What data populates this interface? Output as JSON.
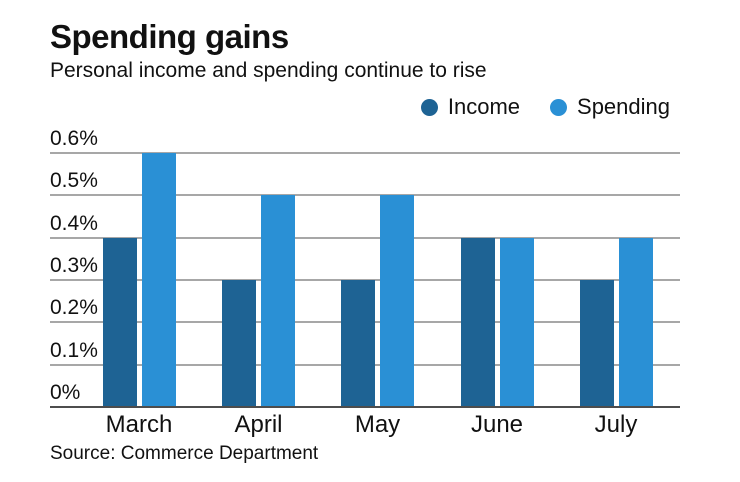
{
  "header": {
    "title": "Spending gains",
    "subtitle": "Personal income and spending continue to rise"
  },
  "legend": {
    "items": [
      {
        "label": "Income",
        "color": "#1e6394"
      },
      {
        "label": "Spending",
        "color": "#2a90d5"
      }
    ]
  },
  "source": {
    "text": "Source: Commerce Department"
  },
  "colors": {
    "income": "#1e6394",
    "spending": "#2a90d5",
    "gridline": "#a7a7a7",
    "baseline": "#4d4d4d",
    "text": "#111111"
  },
  "chart_data": {
    "type": "bar",
    "title": "Spending gains",
    "subtitle": "Personal income and spending continue to rise",
    "categories": [
      "March",
      "April",
      "May",
      "June",
      "July"
    ],
    "series": [
      {
        "name": "Income",
        "color": "#1e6394",
        "values": [
          0.4,
          0.3,
          0.3,
          0.4,
          0.3
        ]
      },
      {
        "name": "Spending",
        "color": "#2a90d5",
        "values": [
          0.6,
          0.5,
          0.5,
          0.4,
          0.4
        ]
      }
    ],
    "xlabel": "",
    "ylabel": "",
    "ylim": [
      0,
      0.6
    ],
    "yticks": [
      {
        "value": 0,
        "label": "0%"
      },
      {
        "value": 0.1,
        "label": "0.1%"
      },
      {
        "value": 0.2,
        "label": "0.2%"
      },
      {
        "value": 0.3,
        "label": "0.3%"
      },
      {
        "value": 0.4,
        "label": "0.4%"
      },
      {
        "value": 0.5,
        "label": "0.5%"
      },
      {
        "value": 0.6,
        "label": "0.6%"
      }
    ],
    "grid": true,
    "legend_position": "top-right",
    "source": "Source: Commerce Department"
  }
}
